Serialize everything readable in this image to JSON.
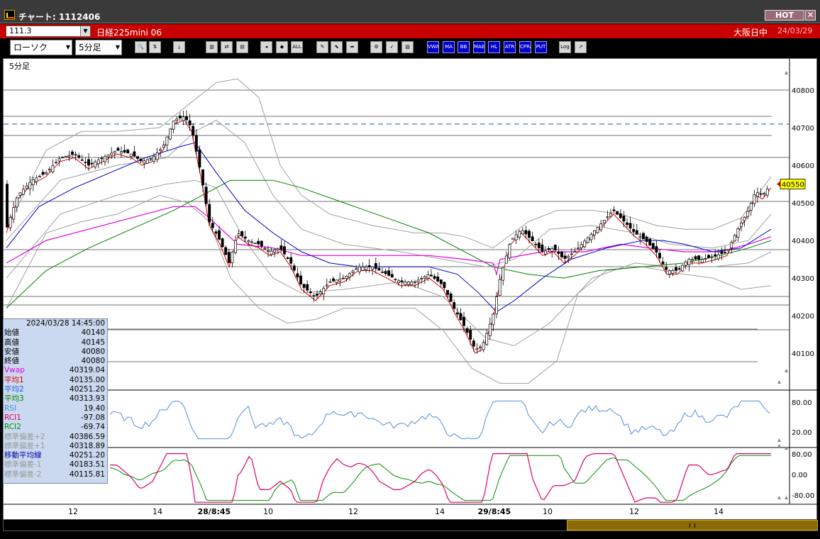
{
  "window": {
    "title": "チャート: 1112406",
    "hot_label": "HOT",
    "close_label": "✕"
  },
  "infobar": {
    "symbol_code": "111.3",
    "symbol_name": "日経225mini 06",
    "session": "大阪日中",
    "date": "24/03/29"
  },
  "toolbar": {
    "chart_type": "ローソク",
    "interval": "5分足",
    "buttons": [
      {
        "name": "zoom-icon",
        "label": "🔍"
      },
      {
        "name": "scale-icon",
        "label": "⇅"
      },
      {
        "name": "download-icon",
        "label": "⤓"
      },
      {
        "name": "bar-chart-icon",
        "label": "▥"
      },
      {
        "name": "compare-icon",
        "label": "⇄"
      },
      {
        "name": "copy-icon",
        "label": "▤"
      },
      {
        "name": "candle-left-icon",
        "label": "◂"
      },
      {
        "name": "candle-center-icon",
        "label": "◆"
      },
      {
        "name": "all-button",
        "label": "ALL"
      },
      {
        "name": "pen-icon",
        "label": "✎"
      },
      {
        "name": "pointer-icon",
        "label": "⬉"
      },
      {
        "name": "arrow-icon",
        "label": "➦"
      },
      {
        "name": "gear-icon",
        "label": "⚙"
      },
      {
        "name": "wrench-icon",
        "label": "✓"
      },
      {
        "name": "color-icon",
        "label": "▨"
      },
      {
        "name": "vwap-button",
        "label": "VWAP"
      },
      {
        "name": "ma-button",
        "label": "MA"
      },
      {
        "name": "bb-button",
        "label": "BB"
      },
      {
        "name": "mae-button",
        "label": "MAE"
      },
      {
        "name": "hl-button",
        "label": "HL"
      },
      {
        "name": "atr-button",
        "label": "ATR"
      },
      {
        "name": "cpr-button",
        "label": "CPRA"
      },
      {
        "name": "put-button",
        "label": "PUT"
      },
      {
        "name": "log-button",
        "label": "Log"
      },
      {
        "name": "export-icon",
        "label": "↗"
      }
    ]
  },
  "chart": {
    "label": "5分足",
    "current_price": "40550",
    "price_ticks": [
      "40800",
      "40700",
      "40600",
      "40500",
      "40400",
      "40300",
      "40200",
      "40100"
    ],
    "rsi_ticks": [
      "80.00",
      "20.00"
    ],
    "rci_ticks": [
      "80.00",
      "0.00",
      "-80.00"
    ],
    "time_labels": [
      {
        "text": "12",
        "day": false
      },
      {
        "text": "14",
        "day": false
      },
      {
        "text": "28/8:45",
        "day": true
      },
      {
        "text": "10",
        "day": false
      },
      {
        "text": "12",
        "day": false
      },
      {
        "text": "14",
        "day": false
      },
      {
        "text": "29/8:45",
        "day": true
      },
      {
        "text": "10",
        "day": false
      },
      {
        "text": "12",
        "day": false
      },
      {
        "text": "14",
        "day": false
      }
    ],
    "colors": {
      "vwap": "#e000e0",
      "ma1": "#e00000",
      "ma2": "#0000d0",
      "ma3": "#008000",
      "bb": "#a0a0a0",
      "rsi": "#4f8fdf",
      "rci1": "#e0006a",
      "rci2": "#009000",
      "dashed": "#2a8ca0"
    }
  },
  "datapanel": {
    "datetime": "2024/03/28  14:45:00",
    "rows": [
      {
        "label": "始値",
        "value": "40140",
        "color": "#000000"
      },
      {
        "label": "高値",
        "value": "40145",
        "color": "#000000"
      },
      {
        "label": "安値",
        "value": "40080",
        "color": "#000000"
      },
      {
        "label": "終値",
        "value": "40080",
        "color": "#000000"
      },
      {
        "label": "Vwap",
        "value": "40319.04",
        "color": "#e000e0"
      },
      {
        "label": "平均1",
        "value": "40135.00",
        "color": "#e00000"
      },
      {
        "label": "平均2",
        "value": "40251.20",
        "color": "#2060e0"
      },
      {
        "label": "平均3",
        "value": "40313.93",
        "color": "#008000"
      },
      {
        "label": "RSI",
        "value": "19.40",
        "color": "#4f8fdf"
      },
      {
        "label": "RCI1",
        "value": "-97.08",
        "color": "#e0006a"
      },
      {
        "label": "RCI2",
        "value": "-69.74",
        "color": "#009000"
      },
      {
        "label": "標準偏差+2",
        "value": "40386.59",
        "color": "#9a9a9a"
      },
      {
        "label": "標準偏差+1",
        "value": "40318.89",
        "color": "#9a9a9a"
      },
      {
        "label": "移動平均線",
        "value": "40251.20",
        "color": "#0000a0"
      },
      {
        "label": "標準偏差-1",
        "value": "40183.51",
        "color": "#9a9a9a"
      },
      {
        "label": "標準偏差-2",
        "value": "40115.81",
        "color": "#9a9a9a"
      }
    ]
  }
}
